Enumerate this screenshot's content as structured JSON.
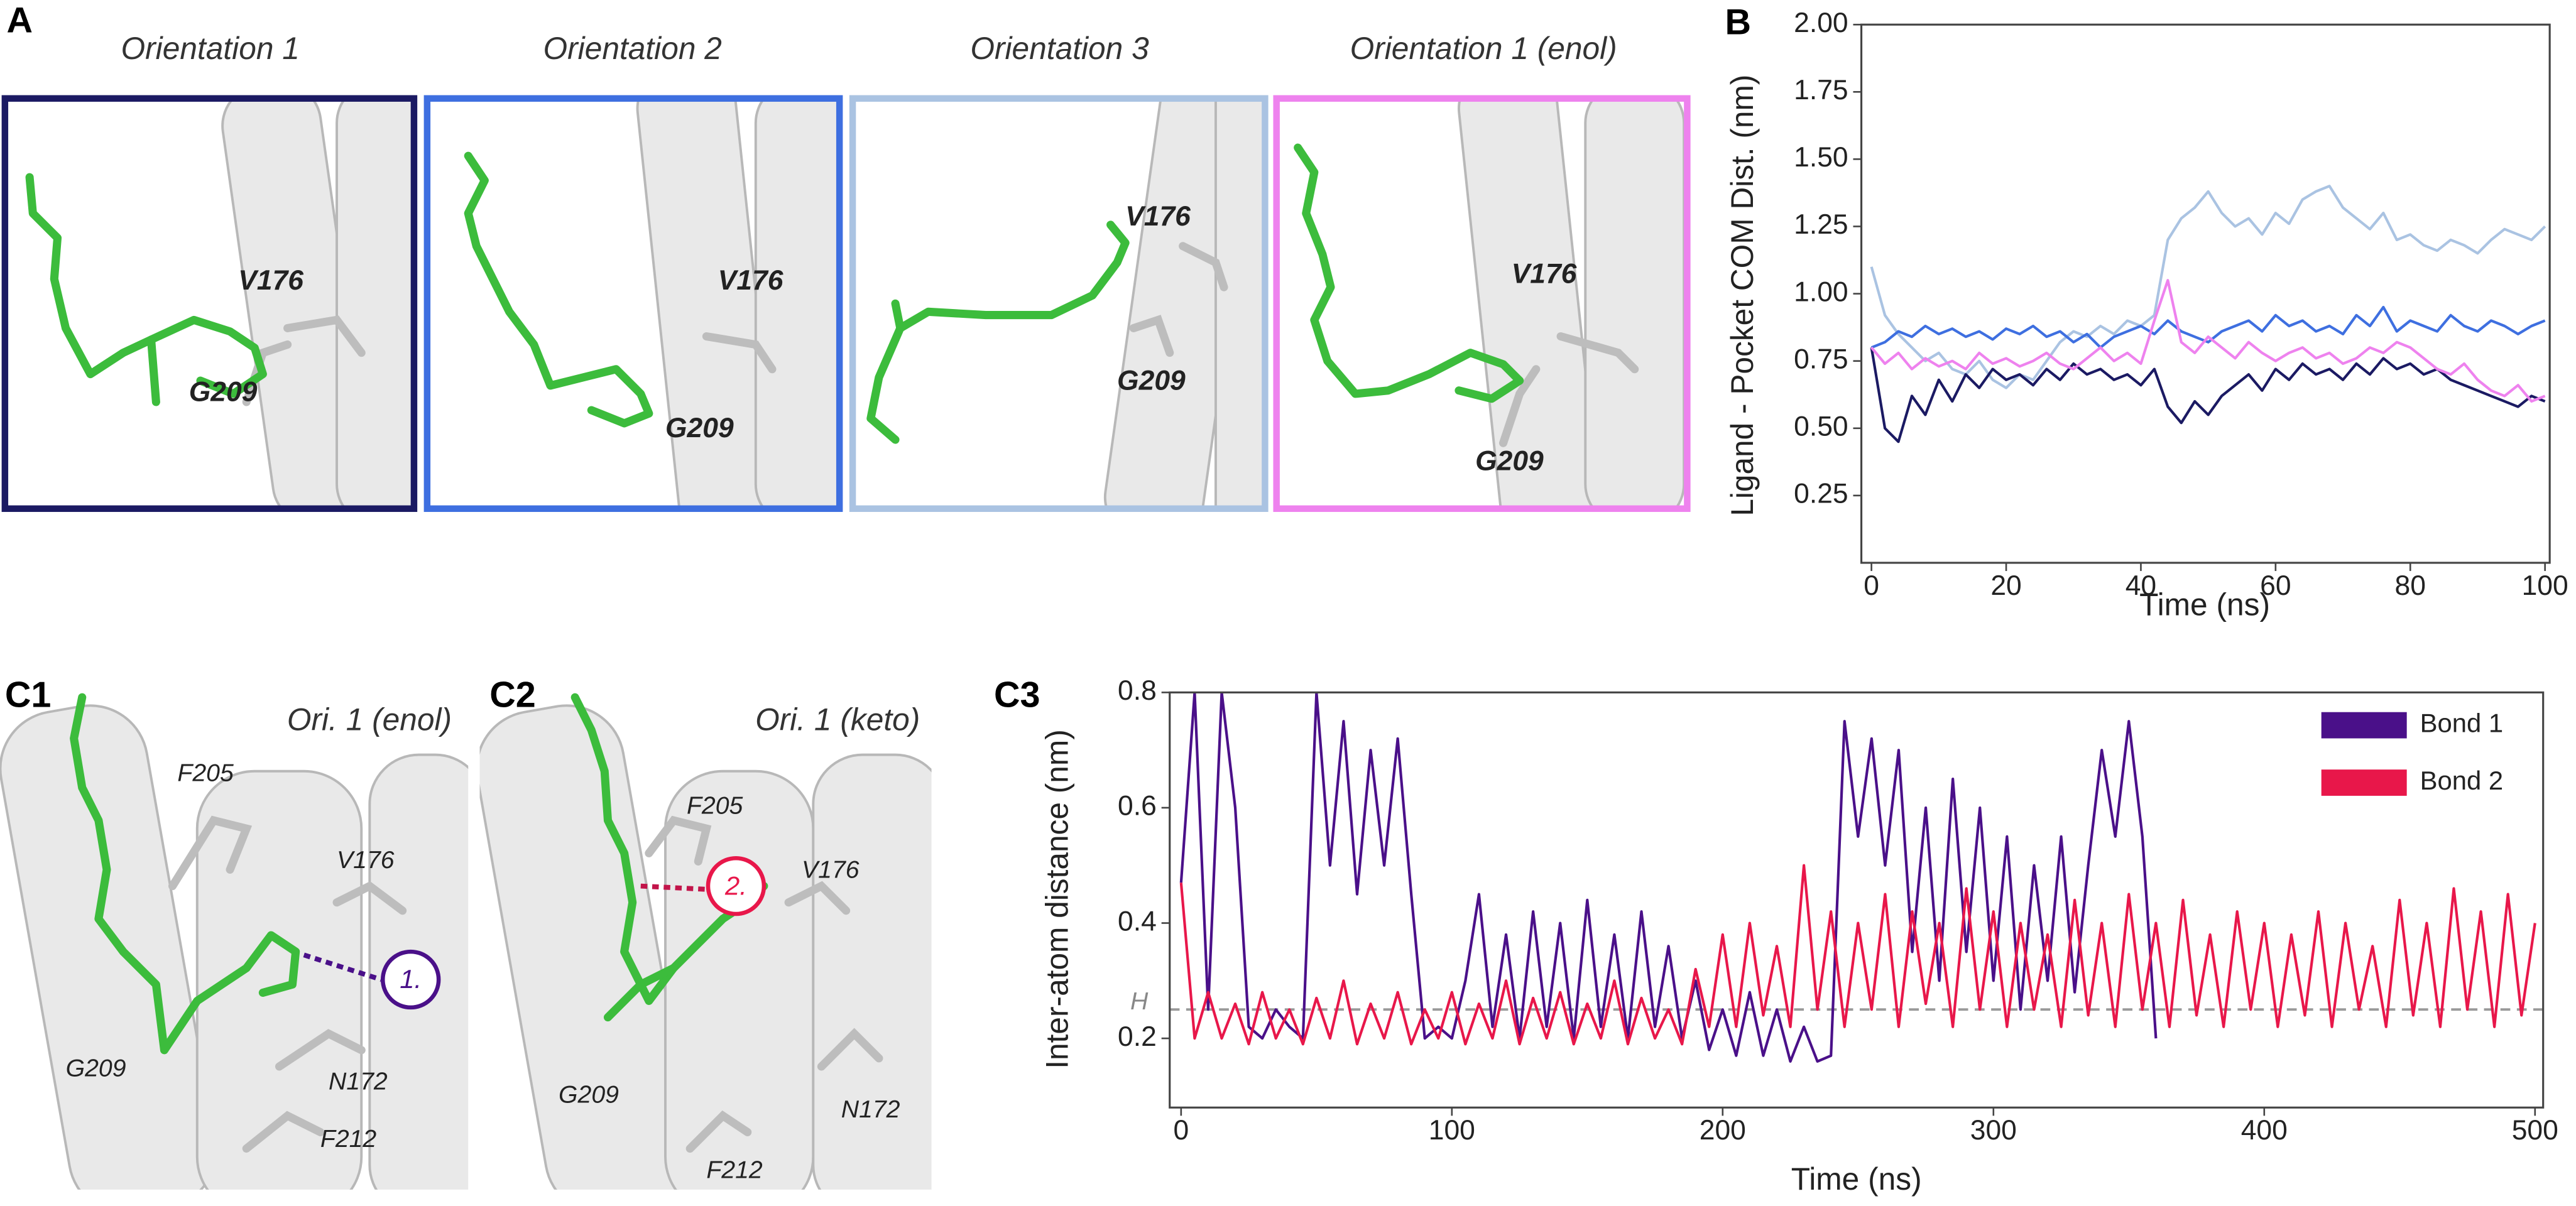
{
  "panels": {
    "A": {
      "label": "A",
      "images": [
        {
          "title": "Orientation 1",
          "color": "#1b1a63",
          "residues": [
            "V176",
            "G209"
          ]
        },
        {
          "title": "Orientation 2",
          "color": "#3e6fe0",
          "residues": [
            "V176",
            "G209"
          ]
        },
        {
          "title": "Orientation 3",
          "color": "#aac3e2",
          "residues": [
            "V176",
            "G209"
          ]
        },
        {
          "title": "Orientation 1 (enol)",
          "color": "#ee82ee",
          "residues": [
            "V176",
            "G209"
          ]
        }
      ]
    },
    "C1": {
      "label": "C1",
      "title": "Ori. 1 (enol)",
      "residues": [
        "F205",
        "V176",
        "G209",
        "N172",
        "F212"
      ],
      "bond_label": "1."
    },
    "C2": {
      "label": "C2",
      "title": "Ori. 1 (keto)",
      "residues": [
        "F205",
        "V176",
        "G209",
        "N172",
        "F212"
      ],
      "bond_label": "2."
    }
  },
  "chart_data": [
    {
      "type": "line",
      "label": "B",
      "xlabel": "Time (ns)",
      "ylabel": "Ligand - Pocket COM Dist. (nm)",
      "xlim": [
        -1.5,
        100.7
      ],
      "ylim": [
        0,
        2.0
      ],
      "xticks": [
        0,
        20,
        40,
        60,
        80,
        100
      ],
      "yticks": [
        {
          "value": 0.25,
          "label": "0.25"
        },
        {
          "value": 0.5,
          "label": "0.50"
        },
        {
          "value": 0.75,
          "label": "0.75"
        },
        {
          "value": 1.0,
          "label": "1.00"
        },
        {
          "value": 1.25,
          "label": "1.25"
        },
        {
          "value": 1.5,
          "label": "1.50"
        },
        {
          "value": 1.75,
          "label": "1.75"
        },
        {
          "value": 2.0,
          "label": "2.00"
        }
      ],
      "x": [
        0,
        2,
        4,
        6,
        8,
        10,
        12,
        14,
        16,
        18,
        20,
        22,
        24,
        26,
        28,
        30,
        32,
        34,
        36,
        38,
        40,
        42,
        44,
        46,
        48,
        50,
        52,
        54,
        56,
        58,
        60,
        62,
        64,
        66,
        68,
        70,
        72,
        74,
        76,
        78,
        80,
        82,
        84,
        86,
        88,
        90,
        92,
        94,
        96,
        98,
        100
      ],
      "series": [
        {
          "color": "#aac3e2",
          "values": [
            1.1,
            0.92,
            0.85,
            0.8,
            0.75,
            0.78,
            0.72,
            0.7,
            0.75,
            0.68,
            0.65,
            0.7,
            0.68,
            0.75,
            0.82,
            0.86,
            0.84,
            0.88,
            0.85,
            0.9,
            0.88,
            0.92,
            1.2,
            1.28,
            1.32,
            1.38,
            1.3,
            1.25,
            1.28,
            1.22,
            1.3,
            1.26,
            1.35,
            1.38,
            1.4,
            1.32,
            1.28,
            1.24,
            1.3,
            1.2,
            1.22,
            1.18,
            1.16,
            1.2,
            1.18,
            1.15,
            1.2,
            1.24,
            1.22,
            1.2,
            1.25
          ]
        },
        {
          "color": "#3e6fe0",
          "values": [
            0.8,
            0.82,
            0.86,
            0.84,
            0.88,
            0.85,
            0.87,
            0.84,
            0.86,
            0.83,
            0.87,
            0.85,
            0.88,
            0.84,
            0.86,
            0.82,
            0.85,
            0.8,
            0.84,
            0.86,
            0.88,
            0.85,
            0.9,
            0.86,
            0.84,
            0.82,
            0.86,
            0.88,
            0.9,
            0.86,
            0.92,
            0.88,
            0.9,
            0.86,
            0.88,
            0.85,
            0.92,
            0.88,
            0.95,
            0.86,
            0.9,
            0.88,
            0.86,
            0.92,
            0.88,
            0.86,
            0.9,
            0.88,
            0.85,
            0.88,
            0.9
          ]
        },
        {
          "color": "#1b1a63",
          "values": [
            0.8,
            0.5,
            0.45,
            0.62,
            0.55,
            0.68,
            0.6,
            0.7,
            0.65,
            0.72,
            0.68,
            0.7,
            0.66,
            0.72,
            0.68,
            0.74,
            0.7,
            0.72,
            0.68,
            0.7,
            0.66,
            0.72,
            0.58,
            0.52,
            0.6,
            0.55,
            0.62,
            0.66,
            0.7,
            0.64,
            0.72,
            0.68,
            0.74,
            0.7,
            0.72,
            0.68,
            0.74,
            0.7,
            0.76,
            0.72,
            0.74,
            0.7,
            0.72,
            0.68,
            0.66,
            0.64,
            0.62,
            0.6,
            0.58,
            0.62,
            0.6
          ]
        },
        {
          "color": "#ee82ee",
          "values": [
            0.8,
            0.74,
            0.78,
            0.72,
            0.76,
            0.73,
            0.75,
            0.72,
            0.78,
            0.74,
            0.76,
            0.73,
            0.75,
            0.78,
            0.74,
            0.72,
            0.76,
            0.8,
            0.75,
            0.78,
            0.74,
            0.9,
            1.05,
            0.82,
            0.78,
            0.84,
            0.8,
            0.76,
            0.82,
            0.78,
            0.75,
            0.78,
            0.8,
            0.76,
            0.78,
            0.74,
            0.76,
            0.8,
            0.78,
            0.82,
            0.8,
            0.76,
            0.72,
            0.7,
            0.74,
            0.68,
            0.64,
            0.62,
            0.66,
            0.6,
            0.62
          ]
        }
      ]
    },
    {
      "type": "line",
      "label": "C3",
      "xlabel": "Time (ns)",
      "ylabel": "Inter-atom distance (nm)",
      "xlim": [
        -4.2,
        503
      ],
      "ylim": [
        0.08,
        0.8
      ],
      "xticks": [
        0,
        100,
        200,
        300,
        400,
        500
      ],
      "yticks": [
        0.2,
        0.4,
        0.6,
        0.8
      ],
      "legend": "upper right",
      "hline": {
        "value": 0.25,
        "label": "H"
      },
      "series": [
        {
          "name": "Bond 1",
          "color": "#4a1089",
          "x": [
            0,
            5,
            10,
            15,
            20,
            25,
            30,
            35,
            40,
            45,
            50,
            55,
            60,
            65,
            70,
            75,
            80,
            85,
            90,
            95,
            100,
            105,
            110,
            115,
            120,
            125,
            130,
            135,
            140,
            145,
            150,
            155,
            160,
            165,
            170,
            175,
            180,
            185,
            190,
            195,
            200,
            205,
            210,
            215,
            220,
            225,
            230,
            235,
            240,
            245,
            250,
            255,
            260,
            265,
            270,
            275,
            280,
            285,
            290,
            295,
            300,
            305,
            310,
            315,
            320,
            325,
            330,
            335,
            340,
            345,
            350,
            355,
            360
          ],
          "values": [
            0.47,
            0.8,
            0.25,
            0.8,
            0.6,
            0.22,
            0.2,
            0.25,
            0.22,
            0.2,
            0.8,
            0.5,
            0.75,
            0.45,
            0.7,
            0.5,
            0.72,
            0.45,
            0.2,
            0.22,
            0.2,
            0.3,
            0.45,
            0.22,
            0.38,
            0.2,
            0.42,
            0.22,
            0.4,
            0.2,
            0.44,
            0.22,
            0.38,
            0.2,
            0.42,
            0.22,
            0.36,
            0.2,
            0.3,
            0.18,
            0.25,
            0.17,
            0.28,
            0.17,
            0.25,
            0.16,
            0.22,
            0.16,
            0.17,
            0.75,
            0.55,
            0.72,
            0.5,
            0.7,
            0.35,
            0.6,
            0.3,
            0.65,
            0.35,
            0.6,
            0.3,
            0.55,
            0.25,
            0.5,
            0.3,
            0.55,
            0.28,
            0.5,
            0.7,
            0.55,
            0.75,
            0.55,
            0.2
          ]
        },
        {
          "name": "Bond 2",
          "color": "#e8174a",
          "x": [
            0,
            5,
            10,
            15,
            20,
            25,
            30,
            35,
            40,
            45,
            50,
            55,
            60,
            65,
            70,
            75,
            80,
            85,
            90,
            95,
            100,
            105,
            110,
            115,
            120,
            125,
            130,
            135,
            140,
            145,
            150,
            155,
            160,
            165,
            170,
            175,
            180,
            185,
            190,
            195,
            200,
            205,
            210,
            215,
            220,
            225,
            230,
            235,
            240,
            245,
            250,
            255,
            260,
            265,
            270,
            275,
            280,
            285,
            290,
            295,
            300,
            305,
            310,
            315,
            320,
            325,
            330,
            335,
            340,
            345,
            350,
            355,
            360,
            365,
            370,
            375,
            380,
            385,
            390,
            395,
            400,
            405,
            410,
            415,
            420,
            425,
            430,
            435,
            440,
            445,
            450,
            455,
            460,
            465,
            470,
            475,
            480,
            485,
            490,
            495,
            500
          ],
          "values": [
            0.47,
            0.2,
            0.28,
            0.2,
            0.26,
            0.19,
            0.28,
            0.2,
            0.25,
            0.19,
            0.27,
            0.2,
            0.3,
            0.19,
            0.26,
            0.2,
            0.28,
            0.19,
            0.25,
            0.2,
            0.28,
            0.19,
            0.26,
            0.2,
            0.3,
            0.19,
            0.27,
            0.2,
            0.28,
            0.19,
            0.26,
            0.2,
            0.3,
            0.19,
            0.27,
            0.2,
            0.25,
            0.19,
            0.32,
            0.22,
            0.38,
            0.22,
            0.4,
            0.24,
            0.36,
            0.22,
            0.5,
            0.25,
            0.42,
            0.22,
            0.4,
            0.25,
            0.45,
            0.22,
            0.42,
            0.26,
            0.4,
            0.22,
            0.46,
            0.25,
            0.42,
            0.22,
            0.4,
            0.25,
            0.38,
            0.22,
            0.44,
            0.24,
            0.4,
            0.22,
            0.45,
            0.25,
            0.4,
            0.22,
            0.44,
            0.24,
            0.38,
            0.22,
            0.42,
            0.25,
            0.4,
            0.22,
            0.38,
            0.24,
            0.42,
            0.22,
            0.4,
            0.25,
            0.36,
            0.22,
            0.44,
            0.24,
            0.4,
            0.22,
            0.46,
            0.25,
            0.42,
            0.22,
            0.45,
            0.24,
            0.4
          ]
        }
      ]
    }
  ]
}
